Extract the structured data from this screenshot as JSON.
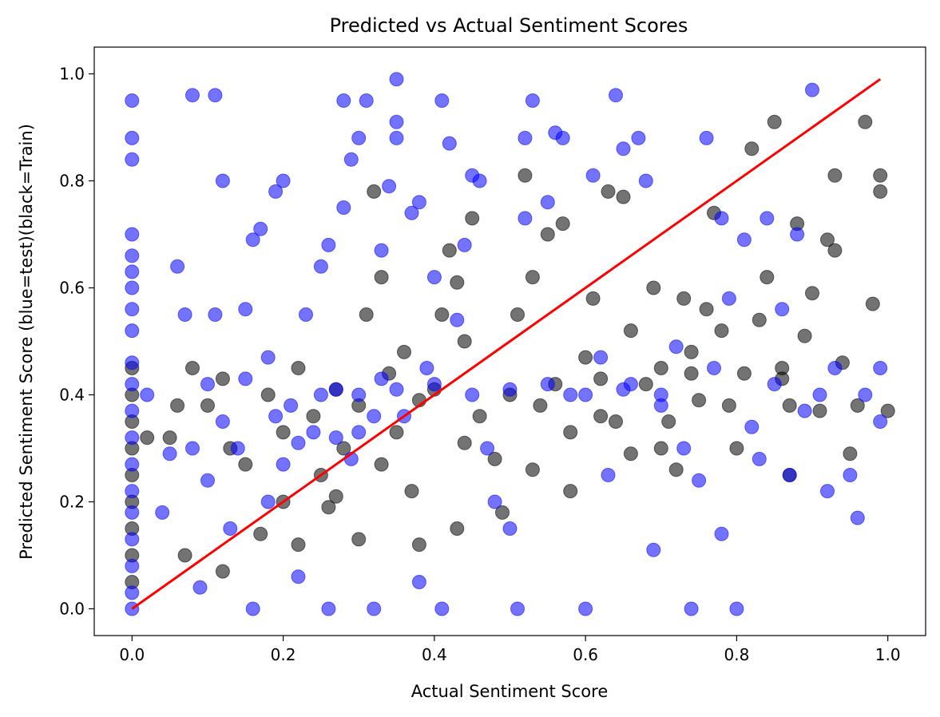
{
  "chart_data": {
    "type": "scatter",
    "title": "Predicted vs Actual Sentiment Scores",
    "xlabel": "Actual Sentiment Score",
    "ylabel": "Predicted Sentiment Score (blue=test)(black=Train)",
    "xlim": [
      -0.05,
      1.05
    ],
    "ylim": [
      -0.05,
      1.05
    ],
    "xticks": [
      0.0,
      0.2,
      0.4,
      0.6,
      0.8,
      1.0
    ],
    "xtick_labels": [
      "0.0",
      "0.2",
      "0.4",
      "0.6",
      "0.8",
      "1.0"
    ],
    "yticks": [
      0.0,
      0.2,
      0.4,
      0.6,
      0.8,
      1.0
    ],
    "ytick_labels": [
      "0.0",
      "0.2",
      "0.4",
      "0.6",
      "0.8",
      "1.0"
    ],
    "grid": false,
    "legend": "none",
    "colors": {
      "test": "#0000ff",
      "train": "#000000",
      "reference": "#ff0000"
    },
    "reference_line": {
      "x": [
        0.0,
        0.99
      ],
      "y": [
        0.0,
        0.99
      ]
    },
    "series": [
      {
        "color": "#000000",
        "points": [
          [
            0.0,
            0.05
          ],
          [
            0.0,
            0.1
          ],
          [
            0.0,
            0.15
          ],
          [
            0.0,
            0.2
          ],
          [
            0.0,
            0.25
          ],
          [
            0.0,
            0.3
          ],
          [
            0.0,
            0.35
          ],
          [
            0.0,
            0.4
          ],
          [
            0.0,
            0.45
          ],
          [
            0.02,
            0.32
          ],
          [
            0.05,
            0.32
          ],
          [
            0.06,
            0.38
          ],
          [
            0.08,
            0.45
          ],
          [
            0.1,
            0.38
          ],
          [
            0.12,
            0.43
          ],
          [
            0.13,
            0.3
          ],
          [
            0.15,
            0.27
          ],
          [
            0.18,
            0.4
          ],
          [
            0.2,
            0.33
          ],
          [
            0.22,
            0.45
          ],
          [
            0.24,
            0.36
          ],
          [
            0.25,
            0.25
          ],
          [
            0.27,
            0.41
          ],
          [
            0.28,
            0.3
          ],
          [
            0.3,
            0.38
          ],
          [
            0.31,
            0.55
          ],
          [
            0.32,
            0.78
          ],
          [
            0.33,
            0.62
          ],
          [
            0.34,
            0.44
          ],
          [
            0.35,
            0.33
          ],
          [
            0.36,
            0.48
          ],
          [
            0.37,
            0.22
          ],
          [
            0.38,
            0.39
          ],
          [
            0.4,
            0.41
          ],
          [
            0.41,
            0.55
          ],
          [
            0.42,
            0.67
          ],
          [
            0.43,
            0.61
          ],
          [
            0.44,
            0.5
          ],
          [
            0.45,
            0.73
          ],
          [
            0.46,
            0.36
          ],
          [
            0.48,
            0.28
          ],
          [
            0.5,
            0.4
          ],
          [
            0.51,
            0.55
          ],
          [
            0.52,
            0.81
          ],
          [
            0.53,
            0.62
          ],
          [
            0.54,
            0.38
          ],
          [
            0.55,
            0.7
          ],
          [
            0.56,
            0.42
          ],
          [
            0.57,
            0.72
          ],
          [
            0.58,
            0.33
          ],
          [
            0.6,
            0.47
          ],
          [
            0.61,
            0.58
          ],
          [
            0.62,
            0.43
          ],
          [
            0.63,
            0.78
          ],
          [
            0.64,
            0.35
          ],
          [
            0.65,
            0.77
          ],
          [
            0.66,
            0.52
          ],
          [
            0.68,
            0.42
          ],
          [
            0.69,
            0.6
          ],
          [
            0.7,
            0.45
          ],
          [
            0.71,
            0.35
          ],
          [
            0.72,
            0.26
          ],
          [
            0.73,
            0.58
          ],
          [
            0.74,
            0.48
          ],
          [
            0.75,
            0.39
          ],
          [
            0.76,
            0.56
          ],
          [
            0.77,
            0.74
          ],
          [
            0.78,
            0.52
          ],
          [
            0.79,
            0.38
          ],
          [
            0.8,
            0.3
          ],
          [
            0.81,
            0.44
          ],
          [
            0.82,
            0.86
          ],
          [
            0.83,
            0.54
          ],
          [
            0.84,
            0.62
          ],
          [
            0.85,
            0.91
          ],
          [
            0.86,
            0.43
          ],
          [
            0.87,
            0.38
          ],
          [
            0.88,
            0.72
          ],
          [
            0.89,
            0.51
          ],
          [
            0.9,
            0.59
          ],
          [
            0.91,
            0.37
          ],
          [
            0.92,
            0.69
          ],
          [
            0.93,
            0.81
          ],
          [
            0.94,
            0.46
          ],
          [
            0.95,
            0.29
          ],
          [
            0.96,
            0.38
          ],
          [
            0.97,
            0.91
          ],
          [
            0.98,
            0.57
          ],
          [
            0.99,
            0.81
          ],
          [
            1.0,
            0.37
          ],
          [
            0.99,
            0.78
          ],
          [
            0.93,
            0.67
          ],
          [
            0.87,
            0.25
          ],
          [
            0.7,
            0.3
          ],
          [
            0.66,
            0.29
          ],
          [
            0.58,
            0.22
          ],
          [
            0.49,
            0.18
          ],
          [
            0.43,
            0.15
          ],
          [
            0.38,
            0.12
          ],
          [
            0.3,
            0.13
          ],
          [
            0.26,
            0.19
          ],
          [
            0.2,
            0.2
          ],
          [
            0.17,
            0.14
          ],
          [
            0.12,
            0.07
          ],
          [
            0.07,
            0.1
          ],
          [
            0.22,
            0.12
          ],
          [
            0.27,
            0.21
          ],
          [
            0.33,
            0.27
          ],
          [
            0.44,
            0.31
          ],
          [
            0.53,
            0.26
          ],
          [
            0.62,
            0.36
          ],
          [
            0.74,
            0.44
          ],
          [
            0.86,
            0.45
          ]
        ]
      },
      {
        "color": "#0000ff",
        "points": [
          [
            0.0,
            0.0
          ],
          [
            0.0,
            0.03
          ],
          [
            0.0,
            0.08
          ],
          [
            0.0,
            0.13
          ],
          [
            0.0,
            0.18
          ],
          [
            0.0,
            0.22
          ],
          [
            0.0,
            0.27
          ],
          [
            0.0,
            0.32
          ],
          [
            0.0,
            0.37
          ],
          [
            0.0,
            0.42
          ],
          [
            0.0,
            0.46
          ],
          [
            0.0,
            0.52
          ],
          [
            0.0,
            0.56
          ],
          [
            0.0,
            0.6
          ],
          [
            0.0,
            0.63
          ],
          [
            0.0,
            0.66
          ],
          [
            0.0,
            0.7
          ],
          [
            0.0,
            0.84
          ],
          [
            0.0,
            0.88
          ],
          [
            0.0,
            0.95
          ],
          [
            0.02,
            0.4
          ],
          [
            0.04,
            0.18
          ],
          [
            0.05,
            0.29
          ],
          [
            0.06,
            0.64
          ],
          [
            0.07,
            0.55
          ],
          [
            0.08,
            0.96
          ],
          [
            0.09,
            0.04
          ],
          [
            0.1,
            0.24
          ],
          [
            0.11,
            0.96
          ],
          [
            0.11,
            0.55
          ],
          [
            0.12,
            0.8
          ],
          [
            0.12,
            0.35
          ],
          [
            0.13,
            0.15
          ],
          [
            0.14,
            0.3
          ],
          [
            0.15,
            0.56
          ],
          [
            0.16,
            0.0
          ],
          [
            0.16,
            0.69
          ],
          [
            0.17,
            0.71
          ],
          [
            0.18,
            0.47
          ],
          [
            0.18,
            0.2
          ],
          [
            0.19,
            0.78
          ],
          [
            0.2,
            0.8
          ],
          [
            0.2,
            0.27
          ],
          [
            0.21,
            0.38
          ],
          [
            0.22,
            0.06
          ],
          [
            0.23,
            0.55
          ],
          [
            0.24,
            0.33
          ],
          [
            0.25,
            0.64
          ],
          [
            0.26,
            0.68
          ],
          [
            0.26,
            0.0
          ],
          [
            0.27,
            0.41
          ],
          [
            0.28,
            0.95
          ],
          [
            0.28,
            0.75
          ],
          [
            0.29,
            0.84
          ],
          [
            0.3,
            0.88
          ],
          [
            0.3,
            0.33
          ],
          [
            0.31,
            0.95
          ],
          [
            0.32,
            0.0
          ],
          [
            0.33,
            0.43
          ],
          [
            0.33,
            0.67
          ],
          [
            0.34,
            0.79
          ],
          [
            0.35,
            0.91
          ],
          [
            0.35,
            0.88
          ],
          [
            0.35,
            0.99
          ],
          [
            0.36,
            0.36
          ],
          [
            0.37,
            0.74
          ],
          [
            0.38,
            0.76
          ],
          [
            0.38,
            0.05
          ],
          [
            0.39,
            0.45
          ],
          [
            0.4,
            0.62
          ],
          [
            0.41,
            0.0
          ],
          [
            0.41,
            0.95
          ],
          [
            0.42,
            0.87
          ],
          [
            0.43,
            0.54
          ],
          [
            0.44,
            0.68
          ],
          [
            0.45,
            0.81
          ],
          [
            0.46,
            0.8
          ],
          [
            0.47,
            0.3
          ],
          [
            0.48,
            0.2
          ],
          [
            0.5,
            0.15
          ],
          [
            0.51,
            0.0
          ],
          [
            0.52,
            0.73
          ],
          [
            0.52,
            0.88
          ],
          [
            0.53,
            0.95
          ],
          [
            0.55,
            0.76
          ],
          [
            0.56,
            0.89
          ],
          [
            0.57,
            0.88
          ],
          [
            0.58,
            0.4
          ],
          [
            0.6,
            0.0
          ],
          [
            0.61,
            0.81
          ],
          [
            0.62,
            0.47
          ],
          [
            0.63,
            0.25
          ],
          [
            0.64,
            0.96
          ],
          [
            0.65,
            0.86
          ],
          [
            0.66,
            0.42
          ],
          [
            0.67,
            0.88
          ],
          [
            0.68,
            0.8
          ],
          [
            0.69,
            0.11
          ],
          [
            0.7,
            0.38
          ],
          [
            0.72,
            0.49
          ],
          [
            0.73,
            0.3
          ],
          [
            0.74,
            0.0
          ],
          [
            0.75,
            0.24
          ],
          [
            0.76,
            0.88
          ],
          [
            0.77,
            0.45
          ],
          [
            0.78,
            0.14
          ],
          [
            0.78,
            0.73
          ],
          [
            0.79,
            0.58
          ],
          [
            0.8,
            0.0
          ],
          [
            0.81,
            0.69
          ],
          [
            0.82,
            0.34
          ],
          [
            0.83,
            0.28
          ],
          [
            0.84,
            0.73
          ],
          [
            0.85,
            0.42
          ],
          [
            0.86,
            0.56
          ],
          [
            0.87,
            0.25
          ],
          [
            0.88,
            0.7
          ],
          [
            0.89,
            0.37
          ],
          [
            0.9,
            0.97
          ],
          [
            0.91,
            0.4
          ],
          [
            0.92,
            0.22
          ],
          [
            0.93,
            0.45
          ],
          [
            0.95,
            0.25
          ],
          [
            0.96,
            0.17
          ],
          [
            0.97,
            0.4
          ],
          [
            0.99,
            0.35
          ],
          [
            0.99,
            0.45
          ],
          [
            0.25,
            0.4
          ],
          [
            0.3,
            0.4
          ],
          [
            0.35,
            0.41
          ],
          [
            0.4,
            0.42
          ],
          [
            0.45,
            0.4
          ],
          [
            0.5,
            0.41
          ],
          [
            0.55,
            0.42
          ],
          [
            0.6,
            0.4
          ],
          [
            0.65,
            0.41
          ],
          [
            0.7,
            0.4
          ],
          [
            0.27,
            0.32
          ],
          [
            0.32,
            0.36
          ],
          [
            0.29,
            0.28
          ],
          [
            0.22,
            0.31
          ],
          [
            0.19,
            0.36
          ],
          [
            0.15,
            0.43
          ],
          [
            0.1,
            0.42
          ],
          [
            0.08,
            0.3
          ]
        ]
      }
    ]
  }
}
